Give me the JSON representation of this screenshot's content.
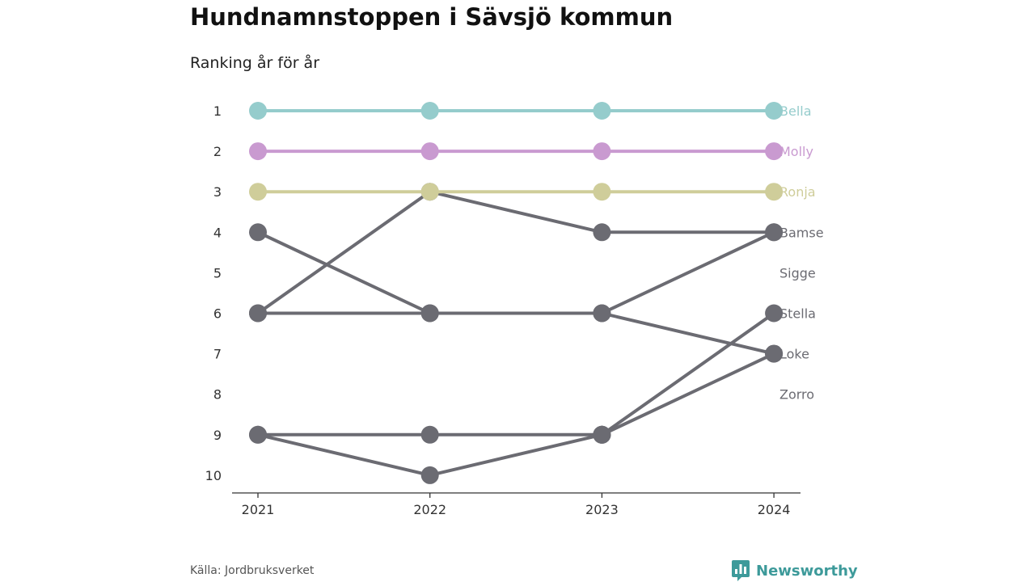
{
  "title": "Hundnamnstoppen i Sävsjö kommun",
  "subtitle": "Ranking år för år",
  "source": "Källa: Jordbruksverket",
  "brand": {
    "name": "Newsworthy",
    "icon": "newsworthy-logo-icon",
    "color": "#3d9a9a"
  },
  "chart_data": {
    "type": "line",
    "title": "Hundnamnstoppen i Sävsjö kommun",
    "subtitle": "Ranking år för år",
    "x": [
      "2021",
      "2022",
      "2023",
      "2024"
    ],
    "y_ticks": [
      1,
      2,
      3,
      4,
      5,
      6,
      7,
      8,
      9,
      10
    ],
    "ylim": [
      1,
      10
    ],
    "y_inverted": true,
    "grid": false,
    "legend": "labels at right end of lines",
    "series": [
      {
        "name": "Zorro",
        "values": [
          9,
          9,
          9,
          null
        ],
        "color": "#6b6b72"
      },
      {
        "name": "Sigge",
        "values": [
          9,
          10,
          9,
          null
        ],
        "color": "#6b6b72"
      },
      {
        "name": "Loke",
        "values": [
          4,
          6,
          6,
          7
        ],
        "color": "#6b6b72"
      },
      {
        "name": "Stella",
        "values": [
          null,
          null,
          9,
          6
        ],
        "color": "#6b6b72"
      },
      {
        "name": "Bamse",
        "values": [
          6,
          3,
          4,
          4
        ],
        "color": "#6b6b72"
      },
      {
        "name": "",
        "values": [
          6,
          6,
          6,
          4
        ],
        "color": "#6b6b72"
      },
      {
        "name": "",
        "values": [
          null,
          null,
          9,
          7
        ],
        "color": "#6b6b72"
      },
      {
        "name": "Ronja",
        "values": [
          3,
          3,
          3,
          3
        ],
        "color": "#cfcd9a"
      },
      {
        "name": "Molly",
        "values": [
          2,
          2,
          2,
          2
        ],
        "color": "#c99ad0"
      },
      {
        "name": "Bella",
        "values": [
          1,
          1,
          1,
          1
        ],
        "color": "#95cccc"
      }
    ],
    "end_labels": [
      {
        "text": "Bella",
        "rank": 1,
        "color": "#95cccc"
      },
      {
        "text": "Molly",
        "rank": 2,
        "color": "#c99ad0"
      },
      {
        "text": "Ronja",
        "rank": 3,
        "color": "#cfcd9a"
      },
      {
        "text": "Bamse",
        "rank": 4,
        "color": "#6b6b72"
      },
      {
        "text": "Sigge",
        "rank": 5,
        "color": "#6b6b72"
      },
      {
        "text": "Stella",
        "rank": 6,
        "color": "#6b6b72"
      },
      {
        "text": "Loke",
        "rank": 7,
        "color": "#6b6b72"
      },
      {
        "text": "Zorro",
        "rank": 8,
        "color": "#6b6b72"
      }
    ]
  }
}
